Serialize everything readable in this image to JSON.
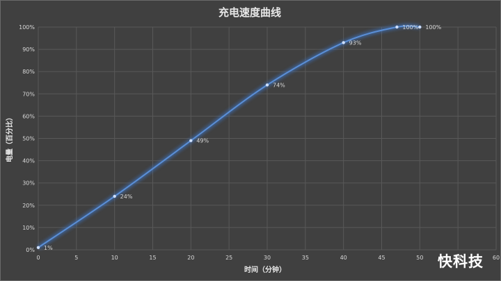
{
  "chart_data": {
    "type": "line",
    "title": "充电速度曲线",
    "xlabel": "时间（分钟）",
    "ylabel": "电量（百分比）",
    "xlim": [
      0,
      60
    ],
    "ylim": [
      0,
      100
    ],
    "x_ticks": [
      "0",
      "5",
      "10",
      "15",
      "20",
      "25",
      "30",
      "35",
      "40",
      "45",
      "50",
      "55",
      "60"
    ],
    "y_ticks": [
      "0%",
      "10%",
      "20%",
      "30%",
      "40%",
      "50%",
      "60%",
      "70%",
      "80%",
      "90%",
      "100%"
    ],
    "grid": true,
    "series": [
      {
        "x": [
          0,
          10,
          20,
          30,
          40,
          47,
          50
        ],
        "y": [
          1,
          24,
          49,
          74,
          93,
          100,
          100
        ],
        "labels": [
          "1%",
          "24%",
          "49%",
          "74%",
          "93%",
          "100%",
          "100%"
        ]
      }
    ]
  },
  "watermark": "快科技",
  "colors": {
    "background": "#404040",
    "line": "#5b8fd6",
    "glow": "#3d6fb8",
    "text": "#d9d9d9",
    "grid": "#595959"
  }
}
